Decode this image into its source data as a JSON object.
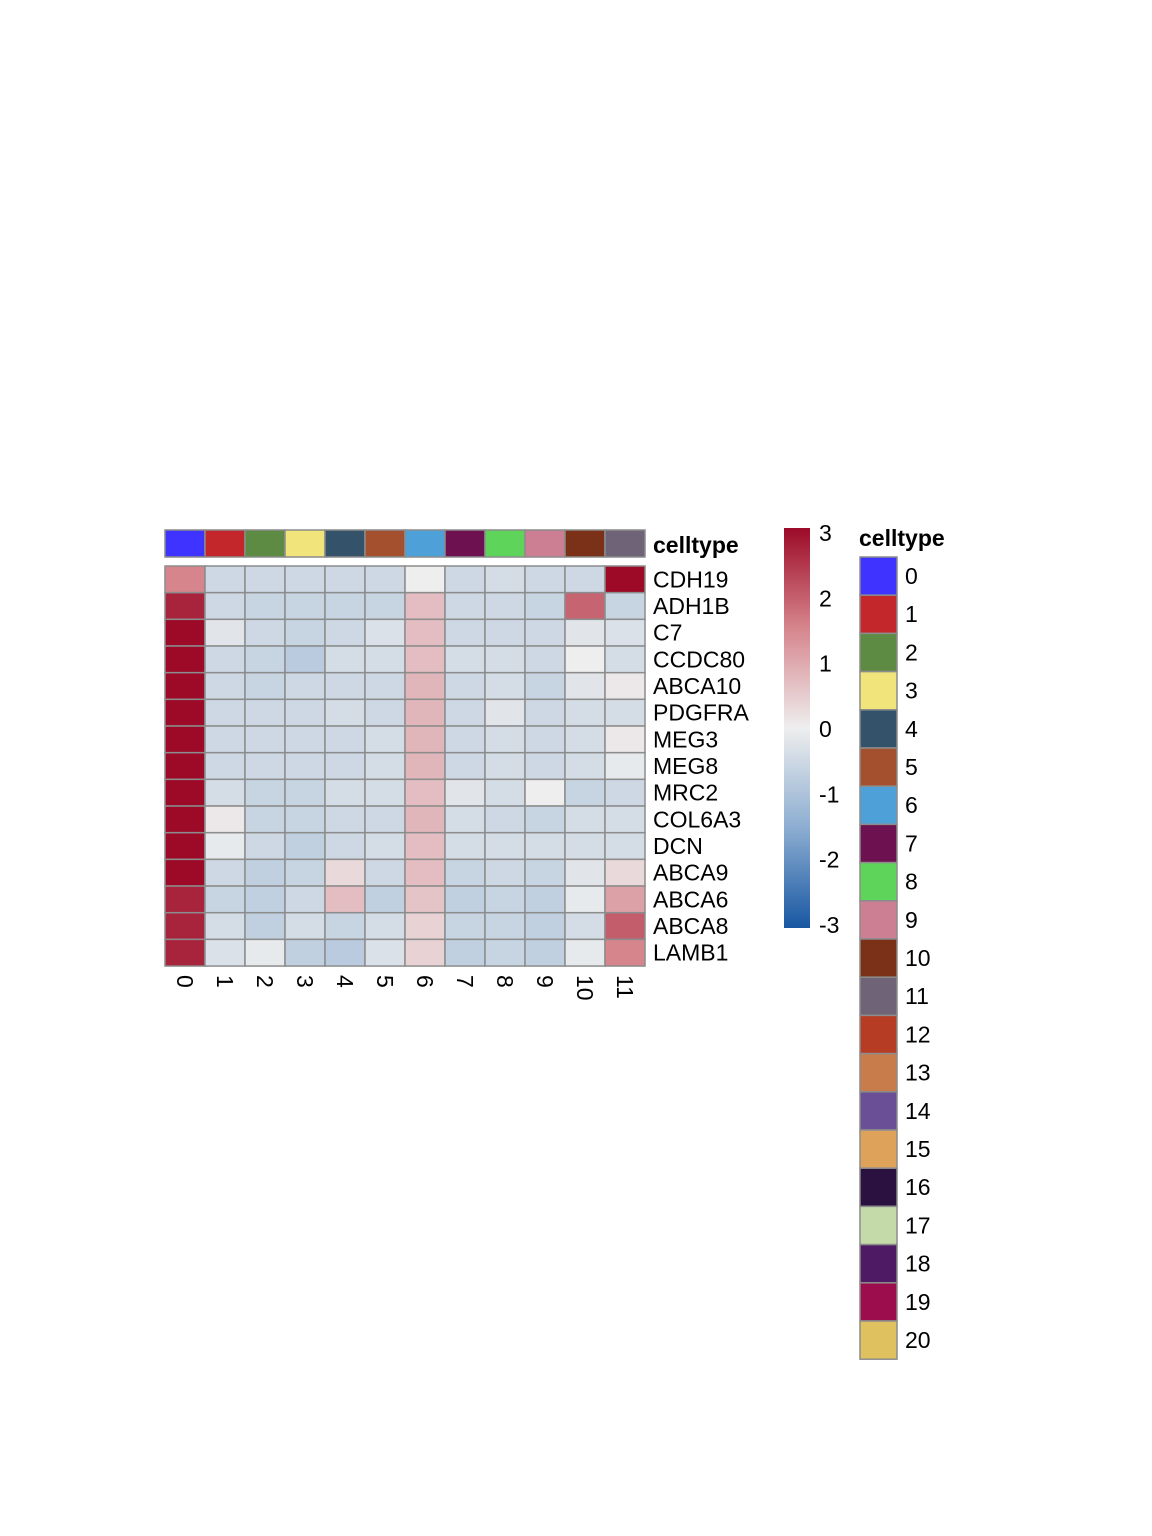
{
  "chart_data": {
    "type": "heatmap",
    "columns": [
      "0",
      "1",
      "2",
      "3",
      "4",
      "5",
      "6",
      "7",
      "8",
      "9",
      "10",
      "11"
    ],
    "rows": [
      "CDH19",
      "ADH1B",
      "C7",
      "CCDC80",
      "ABCA10",
      "PDGFRA",
      "MEG3",
      "MEG8",
      "MRC2",
      "COL6A3",
      "DCN",
      "ABCA9",
      "ABCA6",
      "ABCA8",
      "LAMB1"
    ],
    "values": [
      [
        1.5,
        -0.5,
        -0.5,
        -0.5,
        -0.5,
        -0.5,
        0.0,
        -0.5,
        -0.4,
        -0.5,
        -0.5,
        3.0
      ],
      [
        2.7,
        -0.5,
        -0.6,
        -0.6,
        -0.6,
        -0.6,
        0.7,
        -0.5,
        -0.5,
        -0.6,
        1.9,
        -0.6
      ],
      [
        3.0,
        -0.2,
        -0.5,
        -0.6,
        -0.5,
        -0.3,
        0.7,
        -0.5,
        -0.5,
        -0.5,
        -0.2,
        -0.3
      ],
      [
        3.0,
        -0.5,
        -0.6,
        -0.8,
        -0.4,
        -0.4,
        0.7,
        -0.4,
        -0.4,
        -0.5,
        0.0,
        -0.4
      ],
      [
        3.0,
        -0.5,
        -0.6,
        -0.5,
        -0.5,
        -0.5,
        0.8,
        -0.5,
        -0.4,
        -0.6,
        -0.2,
        0.1
      ],
      [
        3.0,
        -0.5,
        -0.5,
        -0.5,
        -0.4,
        -0.5,
        0.8,
        -0.5,
        -0.2,
        -0.5,
        -0.4,
        -0.4
      ],
      [
        3.0,
        -0.5,
        -0.5,
        -0.5,
        -0.5,
        -0.4,
        0.8,
        -0.5,
        -0.4,
        -0.5,
        -0.4,
        0.1
      ],
      [
        3.0,
        -0.5,
        -0.5,
        -0.5,
        -0.5,
        -0.4,
        0.8,
        -0.5,
        -0.4,
        -0.5,
        -0.4,
        -0.1
      ],
      [
        3.0,
        -0.4,
        -0.6,
        -0.6,
        -0.4,
        -0.4,
        0.7,
        -0.2,
        -0.4,
        0.0,
        -0.6,
        -0.5
      ],
      [
        3.0,
        0.1,
        -0.6,
        -0.6,
        -0.5,
        -0.5,
        0.8,
        -0.4,
        -0.5,
        -0.6,
        -0.4,
        -0.4
      ],
      [
        3.0,
        -0.1,
        -0.5,
        -0.7,
        -0.5,
        -0.4,
        0.7,
        -0.4,
        -0.4,
        -0.4,
        -0.4,
        -0.4
      ],
      [
        3.0,
        -0.5,
        -0.7,
        -0.6,
        0.3,
        -0.5,
        0.7,
        -0.6,
        -0.5,
        -0.6,
        -0.2,
        0.3
      ],
      [
        2.7,
        -0.6,
        -0.7,
        -0.5,
        0.7,
        -0.7,
        0.6,
        -0.7,
        -0.6,
        -0.7,
        -0.1,
        1.1
      ],
      [
        2.7,
        -0.4,
        -0.7,
        -0.4,
        -0.6,
        -0.4,
        0.4,
        -0.6,
        -0.6,
        -0.7,
        -0.4,
        2.0
      ],
      [
        2.7,
        -0.3,
        -0.1,
        -0.7,
        -0.8,
        -0.3,
        0.4,
        -0.7,
        -0.6,
        -0.7,
        -0.1,
        1.5
      ]
    ],
    "annotation_title": "celltype",
    "column_annotation_colors": [
      "#3f33ff",
      "#c3272b",
      "#5e8b44",
      "#f0e47a",
      "#34536b",
      "#a4502f",
      "#4ea1d8",
      "#6e1151",
      "#5ed55a",
      "#cc7e93",
      "#7a3117",
      "#6f6378"
    ],
    "colorbar": {
      "ticks": [
        "3",
        "2",
        "1",
        "0",
        "-1",
        "-2",
        "-3"
      ],
      "range": [
        -3,
        3
      ],
      "colors": [
        "#9c0a28",
        "#d6858d",
        "#eeeeee",
        "#8cadd1",
        "#1857a2"
      ]
    },
    "legend": {
      "title": "celltype",
      "items": [
        {
          "label": "0",
          "color": "#3f33ff"
        },
        {
          "label": "1",
          "color": "#c3272b"
        },
        {
          "label": "2",
          "color": "#5e8b44"
        },
        {
          "label": "3",
          "color": "#f0e47a"
        },
        {
          "label": "4",
          "color": "#34536b"
        },
        {
          "label": "5",
          "color": "#a4502f"
        },
        {
          "label": "6",
          "color": "#4ea1d8"
        },
        {
          "label": "7",
          "color": "#6e1151"
        },
        {
          "label": "8",
          "color": "#5ed55a"
        },
        {
          "label": "9",
          "color": "#cc7e93"
        },
        {
          "label": "10",
          "color": "#7a3117"
        },
        {
          "label": "11",
          "color": "#6f6378"
        },
        {
          "label": "12",
          "color": "#b63c24"
        },
        {
          "label": "13",
          "color": "#c87c4b"
        },
        {
          "label": "14",
          "color": "#6a4f96"
        },
        {
          "label": "15",
          "color": "#dfa25a"
        },
        {
          "label": "16",
          "color": "#2b1140"
        },
        {
          "label": "17",
          "color": "#c4dba9"
        },
        {
          "label": "18",
          "color": "#4e1a64"
        },
        {
          "label": "19",
          "color": "#9c0d4e"
        },
        {
          "label": "20",
          "color": "#e0c15f"
        }
      ]
    }
  }
}
